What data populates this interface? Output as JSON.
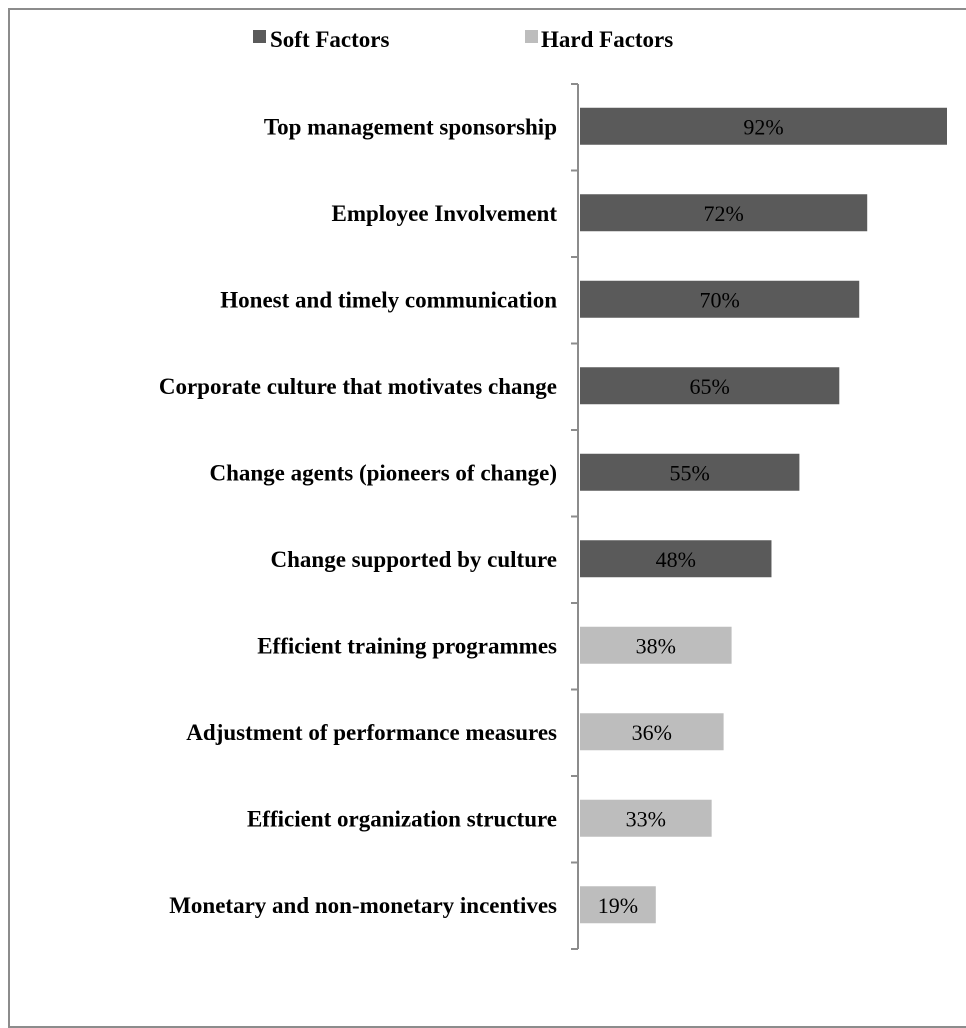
{
  "chart_data": {
    "type": "bar",
    "orientation": "horizontal",
    "categories": [
      "Top management sponsorship",
      "Employee Involvement",
      "Honest and timely communication",
      "Corporate culture that motivates change",
      "Change agents (pioneers of change)",
      "Change supported by culture",
      "Efficient training programmes",
      "Adjustment of performance measures",
      "Efficient organization structure",
      "Monetary and non-monetary incentives"
    ],
    "values": [
      92,
      72,
      70,
      65,
      55,
      48,
      38,
      36,
      33,
      19
    ],
    "value_labels": [
      "92%",
      "72%",
      "70%",
      "65%",
      "55%",
      "48%",
      "38%",
      "36%",
      "33%",
      "19%"
    ],
    "series": [
      {
        "name": "Soft Factors",
        "color": "#5a5a5a",
        "categories": [
          0,
          1,
          2,
          3,
          4,
          5
        ]
      },
      {
        "name": "Hard Factors",
        "color": "#bdbdbd",
        "categories": [
          6,
          7,
          8,
          9
        ]
      }
    ],
    "xlim": [
      0,
      92
    ],
    "legend_position": "top",
    "grid": false
  }
}
